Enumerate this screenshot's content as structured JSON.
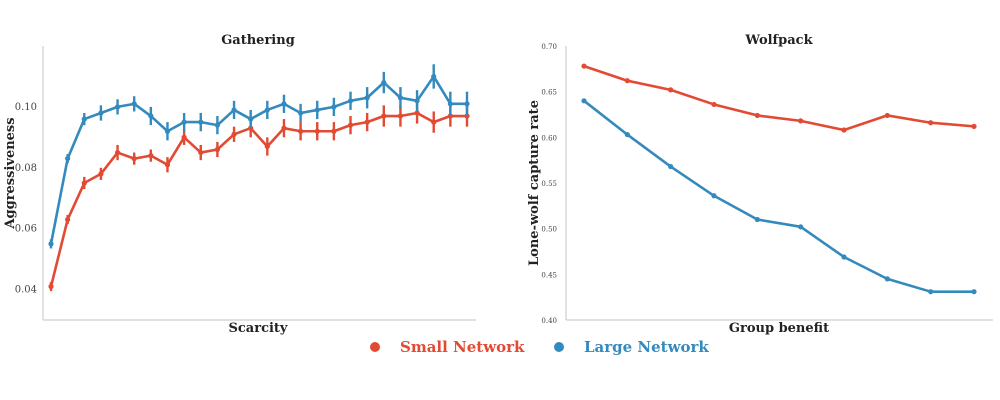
{
  "chart_data": [
    {
      "type": "line",
      "title": "Gathering",
      "xlabel": "Scarcity",
      "ylabel": "Aggressiveness",
      "ylim": [
        0.03,
        0.12
      ],
      "yticks": [
        0.04,
        0.06,
        0.08,
        0.1
      ],
      "ytick_labels": [
        "0.04",
        "0.06",
        "0.08",
        "0.10"
      ],
      "x": [
        1,
        2,
        3,
        4,
        5,
        6,
        7,
        8,
        9,
        10,
        11,
        12,
        13,
        14,
        15,
        16,
        17,
        18,
        19,
        20,
        21,
        22,
        23,
        24,
        25,
        26
      ],
      "series": [
        {
          "name": "Small Network",
          "color": "#e24a33",
          "values": [
            0.041,
            0.063,
            0.075,
            0.078,
            0.085,
            0.083,
            0.084,
            0.081,
            0.09,
            0.085,
            0.086,
            0.091,
            0.093,
            0.087,
            0.093,
            0.092,
            0.092,
            0.092,
            0.094,
            0.095,
            0.097,
            0.097,
            0.098,
            0.095,
            0.097,
            0.097
          ],
          "errors": [
            0.0015,
            0.0015,
            0.002,
            0.002,
            0.0025,
            0.002,
            0.002,
            0.0025,
            0.0025,
            0.0025,
            0.0025,
            0.0025,
            0.003,
            0.003,
            0.003,
            0.003,
            0.003,
            0.003,
            0.003,
            0.003,
            0.0035,
            0.0035,
            0.0035,
            0.0035,
            0.0035,
            0.0035
          ]
        },
        {
          "name": "Large Network",
          "color": "#348abd",
          "values": [
            0.055,
            0.083,
            0.096,
            0.098,
            0.1,
            0.101,
            0.097,
            0.092,
            0.095,
            0.095,
            0.094,
            0.099,
            0.096,
            0.099,
            0.101,
            0.098,
            0.099,
            0.1,
            0.102,
            0.103,
            0.108,
            0.103,
            0.102,
            0.11,
            0.101,
            0.101
          ],
          "errors": [
            0.0015,
            0.0015,
            0.002,
            0.0025,
            0.0025,
            0.0025,
            0.003,
            0.003,
            0.003,
            0.003,
            0.003,
            0.003,
            0.003,
            0.003,
            0.003,
            0.003,
            0.003,
            0.003,
            0.003,
            0.0035,
            0.0035,
            0.0035,
            0.0035,
            0.004,
            0.004,
            0.004
          ]
        }
      ],
      "grid": false
    },
    {
      "type": "line",
      "title": "Wolfpack",
      "xlabel": "Group benefit",
      "ylabel": "Lone-wolf capture rate",
      "ylim": [
        0.4,
        0.7
      ],
      "yticks": [
        0.4,
        0.45,
        0.5,
        0.55,
        0.6,
        0.65,
        0.7
      ],
      "ytick_labels": [
        "0.40",
        "0.45",
        "0.50",
        "0.55",
        "0.60",
        "0.65",
        "0.70"
      ],
      "x": [
        1,
        2,
        3,
        4,
        5,
        6,
        7,
        8,
        9,
        10
      ],
      "series": [
        {
          "name": "Small Network",
          "color": "#e24a33",
          "values": [
            0.678,
            0.662,
            0.652,
            0.636,
            0.624,
            0.618,
            0.608,
            0.624,
            0.616,
            0.612
          ]
        },
        {
          "name": "Large Network",
          "color": "#348abd",
          "values": [
            0.64,
            0.603,
            0.568,
            0.536,
            0.51,
            0.502,
            0.469,
            0.445,
            0.431,
            0.431
          ]
        }
      ],
      "grid": false
    }
  ],
  "legend": {
    "items": [
      {
        "label": "Small Network",
        "color": "#e24a33"
      },
      {
        "label": "Large Network",
        "color": "#348abd"
      }
    ],
    "placement": "bottom-center"
  }
}
